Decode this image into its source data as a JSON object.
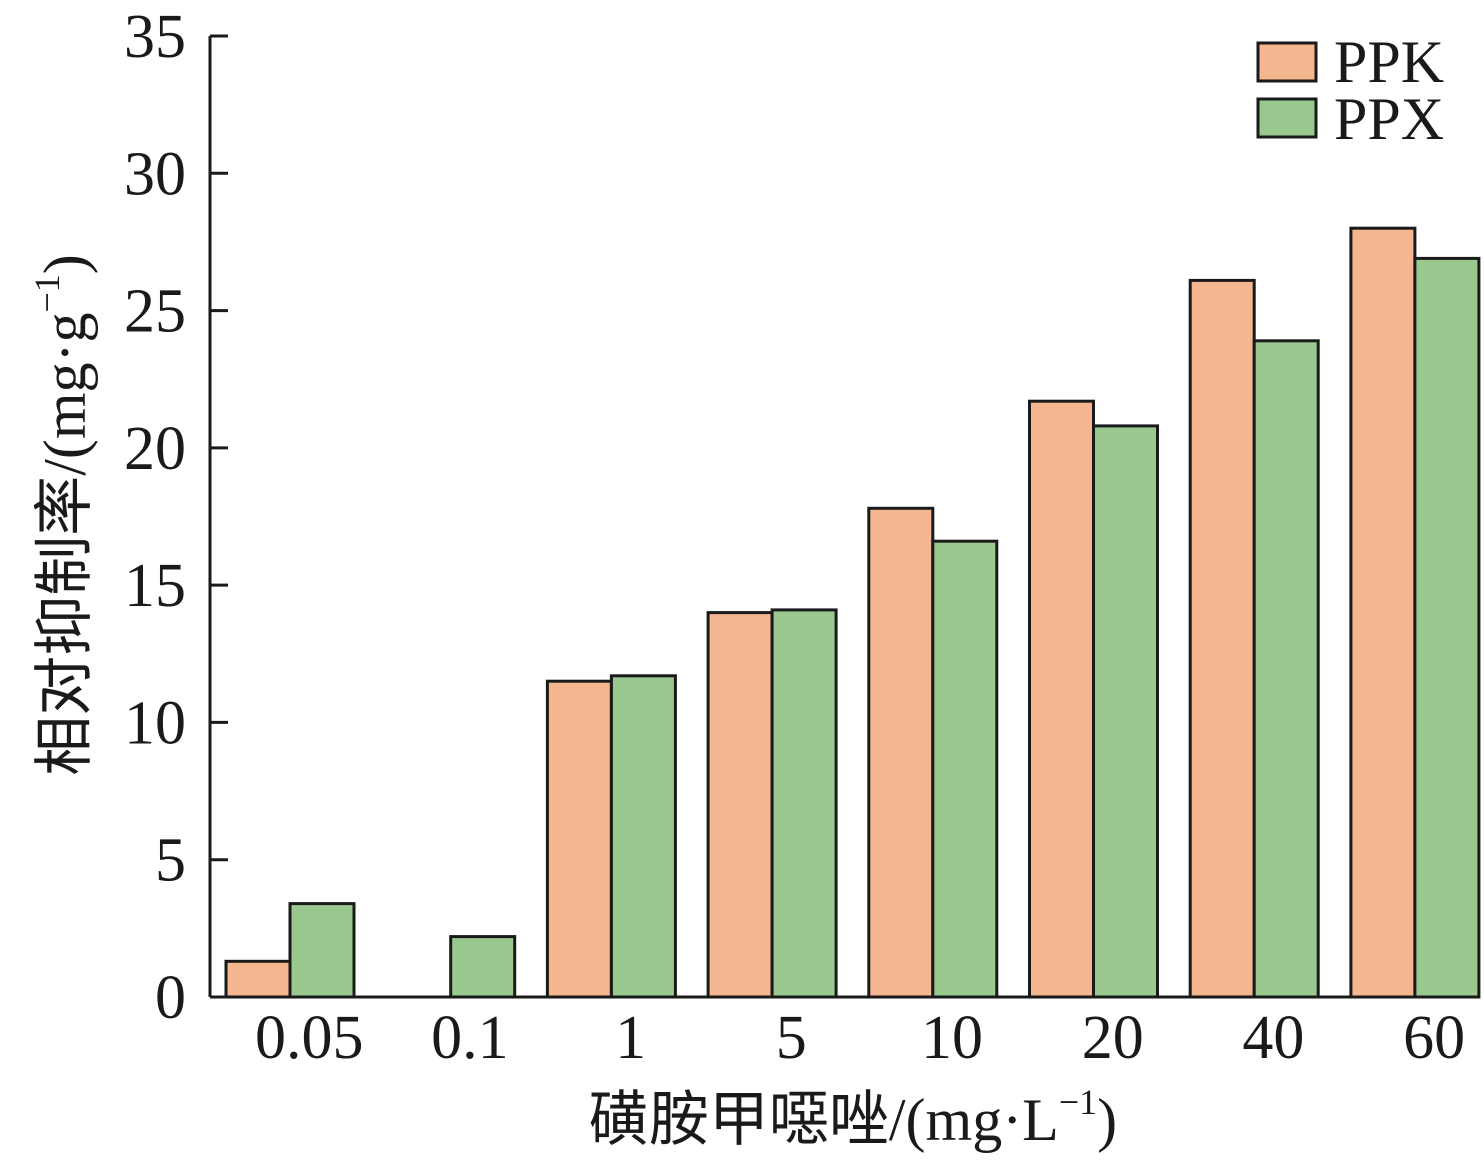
{
  "chart_data": {
    "type": "bar",
    "title": "",
    "xlabel": "磺胺甲噁唑/(mg·L−1)",
    "xlabel_main": "磺胺甲噁唑/(mg·L",
    "xlabel_sup": "−1",
    "xlabel_close": ")",
    "ylabel": "相对抑制率/(mg·g−1)",
    "ylabel_main": "相对抑制率/(mg·g",
    "ylabel_sup": "−1",
    "ylabel_close": ")",
    "categories": [
      "0.05",
      "0.1",
      "1",
      "5",
      "10",
      "20",
      "40",
      "60"
    ],
    "ylim": [
      0,
      35
    ],
    "yticks": [
      0,
      5,
      10,
      15,
      20,
      25,
      30,
      35
    ],
    "grid": false,
    "legend": "top-right",
    "series": [
      {
        "name": "PPK",
        "color": "#f5b78f",
        "values": [
          1.3,
          0,
          11.5,
          14.0,
          17.8,
          21.7,
          26.1,
          28.0
        ]
      },
      {
        "name": "PPX",
        "color": "#99c98f",
        "values": [
          3.4,
          2.2,
          11.7,
          14.1,
          16.6,
          20.8,
          23.9,
          26.9
        ]
      }
    ]
  }
}
